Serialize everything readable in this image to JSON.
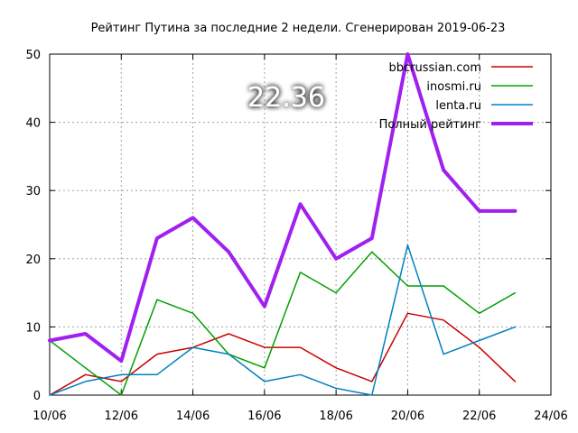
{
  "chart_data": {
    "type": "line",
    "title": "Рейтинг Путина за последние 2 недели. Сгенерирован 2019-06-23",
    "badge": "22.36",
    "xlabel": "",
    "ylabel": "",
    "x": [
      "2019-06-10",
      "2019-06-11",
      "2019-06-12",
      "2019-06-13",
      "2019-06-14",
      "2019-06-15",
      "2019-06-16",
      "2019-06-17",
      "2019-06-18",
      "2019-06-19",
      "2019-06-20",
      "2019-06-21",
      "2019-06-22",
      "2019-06-23"
    ],
    "xlim": [
      "2019-06-10",
      "2019-06-24"
    ],
    "xticks": [
      "10/06",
      "12/06",
      "14/06",
      "16/06",
      "18/06",
      "20/06",
      "22/06",
      "24/06"
    ],
    "ylim": [
      0,
      50
    ],
    "yticks": [
      "0",
      "10",
      "20",
      "30",
      "40",
      "50"
    ],
    "grid": true,
    "legend_position": "top-right",
    "series": [
      {
        "name": "bbcrussian.com",
        "color": "#cc0000",
        "width": "thin",
        "values": [
          0,
          3,
          2,
          6,
          7,
          9,
          7,
          7,
          4,
          2,
          12,
          11,
          7,
          2
        ]
      },
      {
        "name": "inosmi.ru",
        "color": "#00a000",
        "width": "thin",
        "values": [
          8,
          4,
          0,
          14,
          12,
          6,
          4,
          18,
          15,
          21,
          16,
          16,
          12,
          15
        ]
      },
      {
        "name": "lenta.ru",
        "color": "#0080c0",
        "width": "thin",
        "values": [
          0,
          2,
          3,
          3,
          7,
          6,
          2,
          3,
          1,
          0,
          22,
          6,
          8,
          10
        ]
      },
      {
        "name": "Полный рейтинг",
        "color": "#a020f0",
        "width": "thick",
        "values": [
          8,
          9,
          5,
          23,
          26,
          21,
          13,
          28,
          20,
          23,
          50,
          33,
          27,
          27
        ]
      }
    ]
  }
}
